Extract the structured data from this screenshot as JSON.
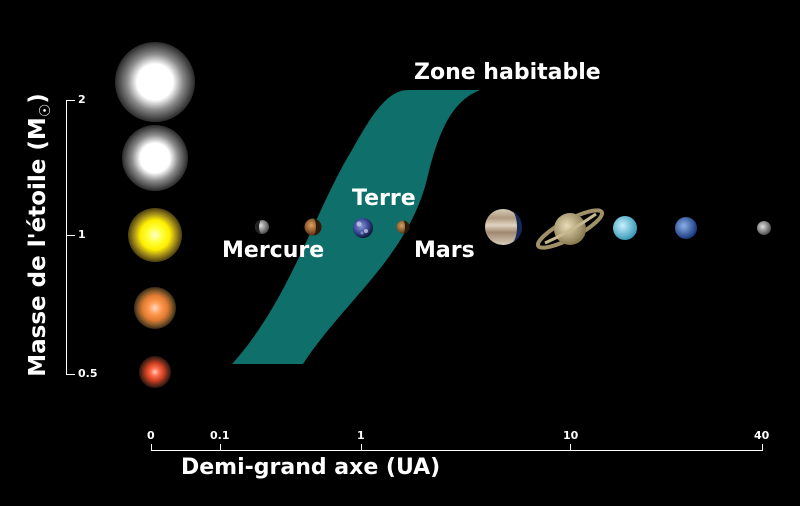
{
  "axes": {
    "x_label": "Demi-grand axe (UA)",
    "y_label_main": "Masse de l'étoile (M",
    "y_label_sub": "☉",
    "y_label_end": ")",
    "x_ticks": [
      "0",
      "0.1",
      "1",
      "10",
      "40"
    ],
    "y_ticks": [
      "2",
      "1",
      "0.5"
    ]
  },
  "labels": {
    "zone": "Zone habitable",
    "earth": "Terre",
    "mercury": "Mercure",
    "mars": "Mars"
  },
  "colors": {
    "background": "#000000",
    "zone": "#0f6f6a",
    "text": "#ffffff"
  },
  "stars": [
    {
      "name": "star-2-0",
      "mass": 2.0,
      "color": "#ffffff"
    },
    {
      "name": "star-1-6",
      "mass": 1.6,
      "color": "#ffffff"
    },
    {
      "name": "star-1-0",
      "mass": 1.0,
      "color": "#ffff33"
    },
    {
      "name": "star-0-75",
      "mass": 0.75,
      "color": "#ff9a50"
    },
    {
      "name": "star-0-5",
      "mass": 0.5,
      "color": "#e04a2a"
    }
  ],
  "planets": [
    {
      "name": "mercury",
      "color": "#9a9a9a"
    },
    {
      "name": "venus",
      "color": "#b0602a"
    },
    {
      "name": "earth",
      "color": "#3a4a9a"
    },
    {
      "name": "mars",
      "color": "#b07a40"
    },
    {
      "name": "jupiter",
      "color": "#c8b8a0"
    },
    {
      "name": "saturn",
      "color": "#c8b890"
    },
    {
      "name": "uranus",
      "color": "#8fd0e8"
    },
    {
      "name": "neptune",
      "color": "#3a6ab0"
    },
    {
      "name": "pluto",
      "color": "#9a9a9a"
    }
  ]
}
